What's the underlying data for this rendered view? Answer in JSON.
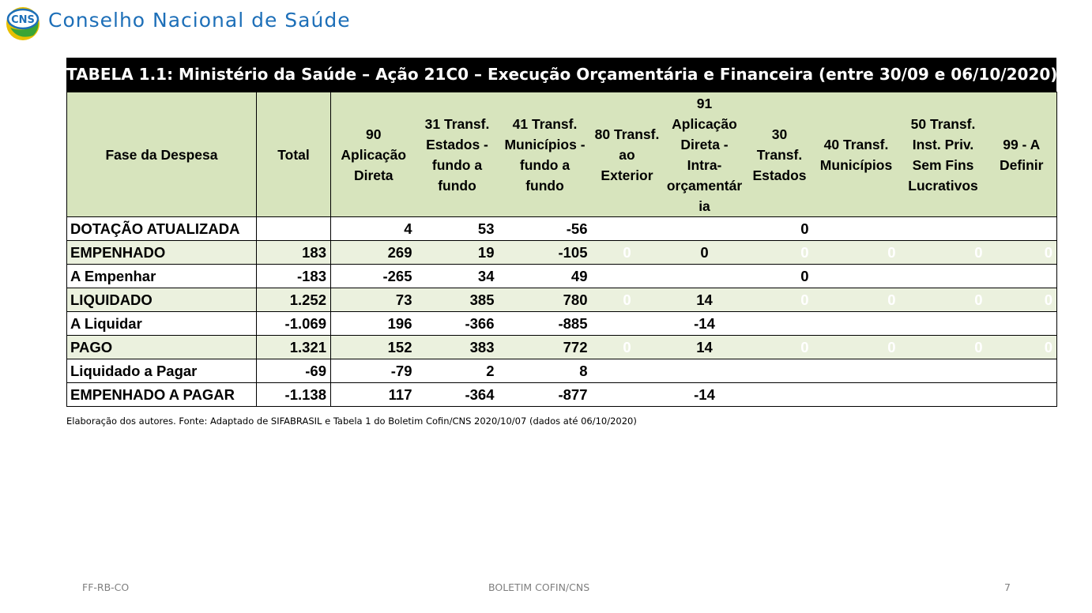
{
  "header": {
    "logo_text": "CNS",
    "title": "Conselho Nacional de Saúde"
  },
  "table": {
    "caption": "TABELA 1.1: Ministério da Saúde – Ação 21C0 – Execução Orçamentária e Financeira (entre 30/09 e 06/10/2020)",
    "columns": [
      "Fase da Despesa",
      "Total",
      "90 Aplicação Direta",
      "31 Transf. Estados - fundo a fundo",
      "41 Transf. Municípios - fundo a fundo",
      "80 Transf. ao Exterior",
      "91 Aplicação Direta - Intra- orçamentár ia",
      "30 Transf. Estados",
      "40 Transf. Municípios",
      "50 Transf. Inst. Priv. Sem Fins Lucrativos",
      "99 - A Definir"
    ],
    "rows": [
      {
        "label": "DOTAÇÃO ATUALIZADA",
        "cells": [
          "",
          "4",
          "53",
          "-56",
          "",
          "",
          "0",
          "",
          "",
          ""
        ]
      },
      {
        "label": "EMPENHADO",
        "cells": [
          "183",
          "269",
          "19",
          "-105",
          "0",
          "0",
          "0",
          "0",
          "0",
          "0"
        ]
      },
      {
        "label": "A Empenhar",
        "cells": [
          "-183",
          "-265",
          "34",
          "49",
          "",
          "",
          "0",
          "",
          "",
          ""
        ]
      },
      {
        "label": "LIQUIDADO",
        "cells": [
          "1.252",
          "73",
          "385",
          "780",
          "0",
          "14",
          "0",
          "0",
          "0",
          "0"
        ]
      },
      {
        "label": "A Liquidar",
        "cells": [
          "-1.069",
          "196",
          "-366",
          "-885",
          "",
          "-14",
          "",
          "",
          "",
          ""
        ]
      },
      {
        "label": "PAGO",
        "cells": [
          "1.321",
          "152",
          "383",
          "772",
          "0",
          "14",
          "0",
          "0",
          "0",
          "0"
        ]
      },
      {
        "label": "Liquidado a Pagar",
        "cells": [
          "-69",
          "-79",
          "2",
          "8",
          "",
          "",
          "",
          "",
          "",
          ""
        ]
      },
      {
        "label": "EMPENHADO A PAGAR",
        "cells": [
          "-1.138",
          "117",
          "-364",
          "-877",
          "",
          "-14",
          "",
          "",
          "",
          ""
        ]
      }
    ]
  },
  "source_note": "Elaboração dos autores. Fonte: Adaptado de SIFABRASIL e Tabela 1 do Boletim Cofin/CNS 2020/10/07 (dados até 06/10/2020)",
  "footer": {
    "left": "FF-RB-CO",
    "center": "BOLETIM COFIN/CNS",
    "page": "7"
  },
  "colors": {
    "title_blue": "#1d6fb8",
    "header_green": "#d7e4bd",
    "alt_row_green": "#ebf1de",
    "caption_bg": "#000000"
  }
}
